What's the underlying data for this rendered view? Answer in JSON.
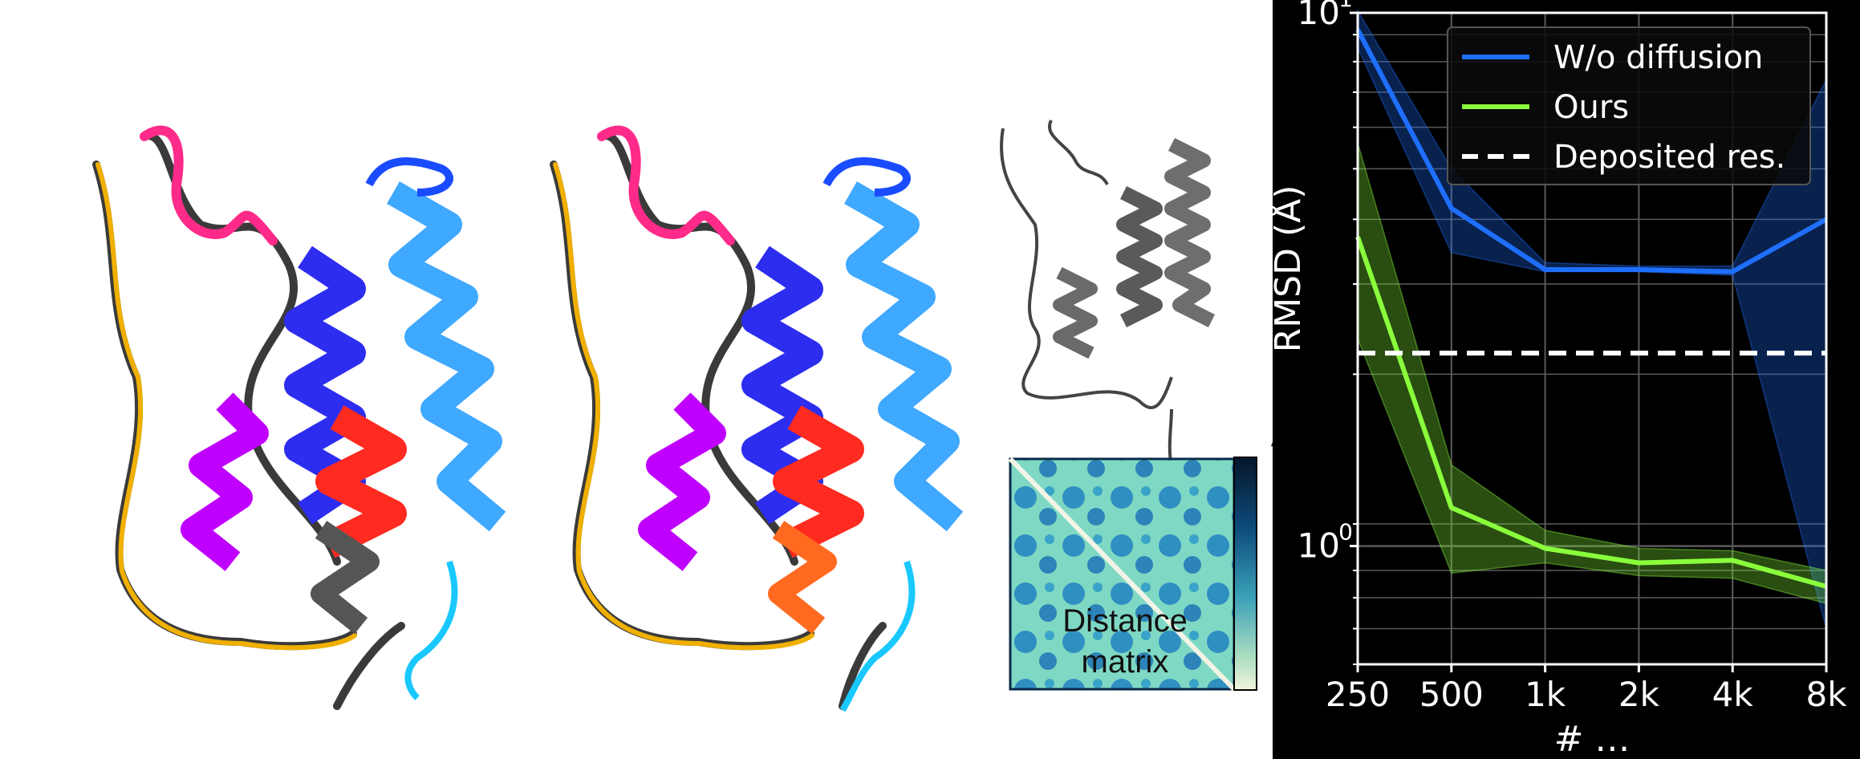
{
  "figure": {
    "dm_label_line1": "Distance",
    "dm_label_line2": "matrix",
    "stray_label": "Å"
  },
  "colors": {
    "plot_bg": "#000000",
    "grid": "#5a5a5a",
    "wo_diffusion": "#1f6fff",
    "ours": "#8aff3c",
    "deposited": "#ffffff"
  },
  "chart_data": {
    "type": "line",
    "title": "",
    "xlabel": "# …",
    "ylabel": "RMSD (Å)",
    "x_scale": "log2",
    "y_scale": "log",
    "categories": [
      "250",
      "500",
      "1k",
      "2k",
      "4k",
      "8k"
    ],
    "x": [
      250,
      500,
      1000,
      2000,
      4000,
      8000
    ],
    "ylim": [
      0.6,
      10
    ],
    "y_ticks": [
      {
        "value": 1,
        "base": "10",
        "exp": "0"
      },
      {
        "value": 10,
        "base": "10",
        "exp": "1"
      }
    ],
    "grid": true,
    "legend_position": "top-right",
    "series": [
      {
        "name": "W/o diffusion",
        "color": "#1f6fff",
        "values": [
          9.3,
          4.3,
          3.3,
          3.3,
          3.27,
          4.1
        ],
        "band_low": [
          8.6,
          3.55,
          3.27,
          3.27,
          3.22,
          0.7
        ],
        "band_high": [
          10.1,
          5.1,
          3.4,
          3.35,
          3.35,
          7.5
        ]
      },
      {
        "name": "Ours",
        "color": "#8aff3c",
        "values": [
          3.8,
          1.18,
          0.99,
          0.93,
          0.94,
          0.84
        ],
        "band_low": [
          2.45,
          0.89,
          0.93,
          0.88,
          0.87,
          0.78
        ],
        "band_high": [
          5.7,
          1.42,
          1.07,
          0.99,
          0.98,
          0.9
        ]
      },
      {
        "name": "Deposited res.",
        "color": "#ffffff",
        "dashed": true,
        "values": [
          2.3,
          2.3,
          2.3,
          2.3,
          2.3,
          2.3
        ]
      }
    ]
  }
}
